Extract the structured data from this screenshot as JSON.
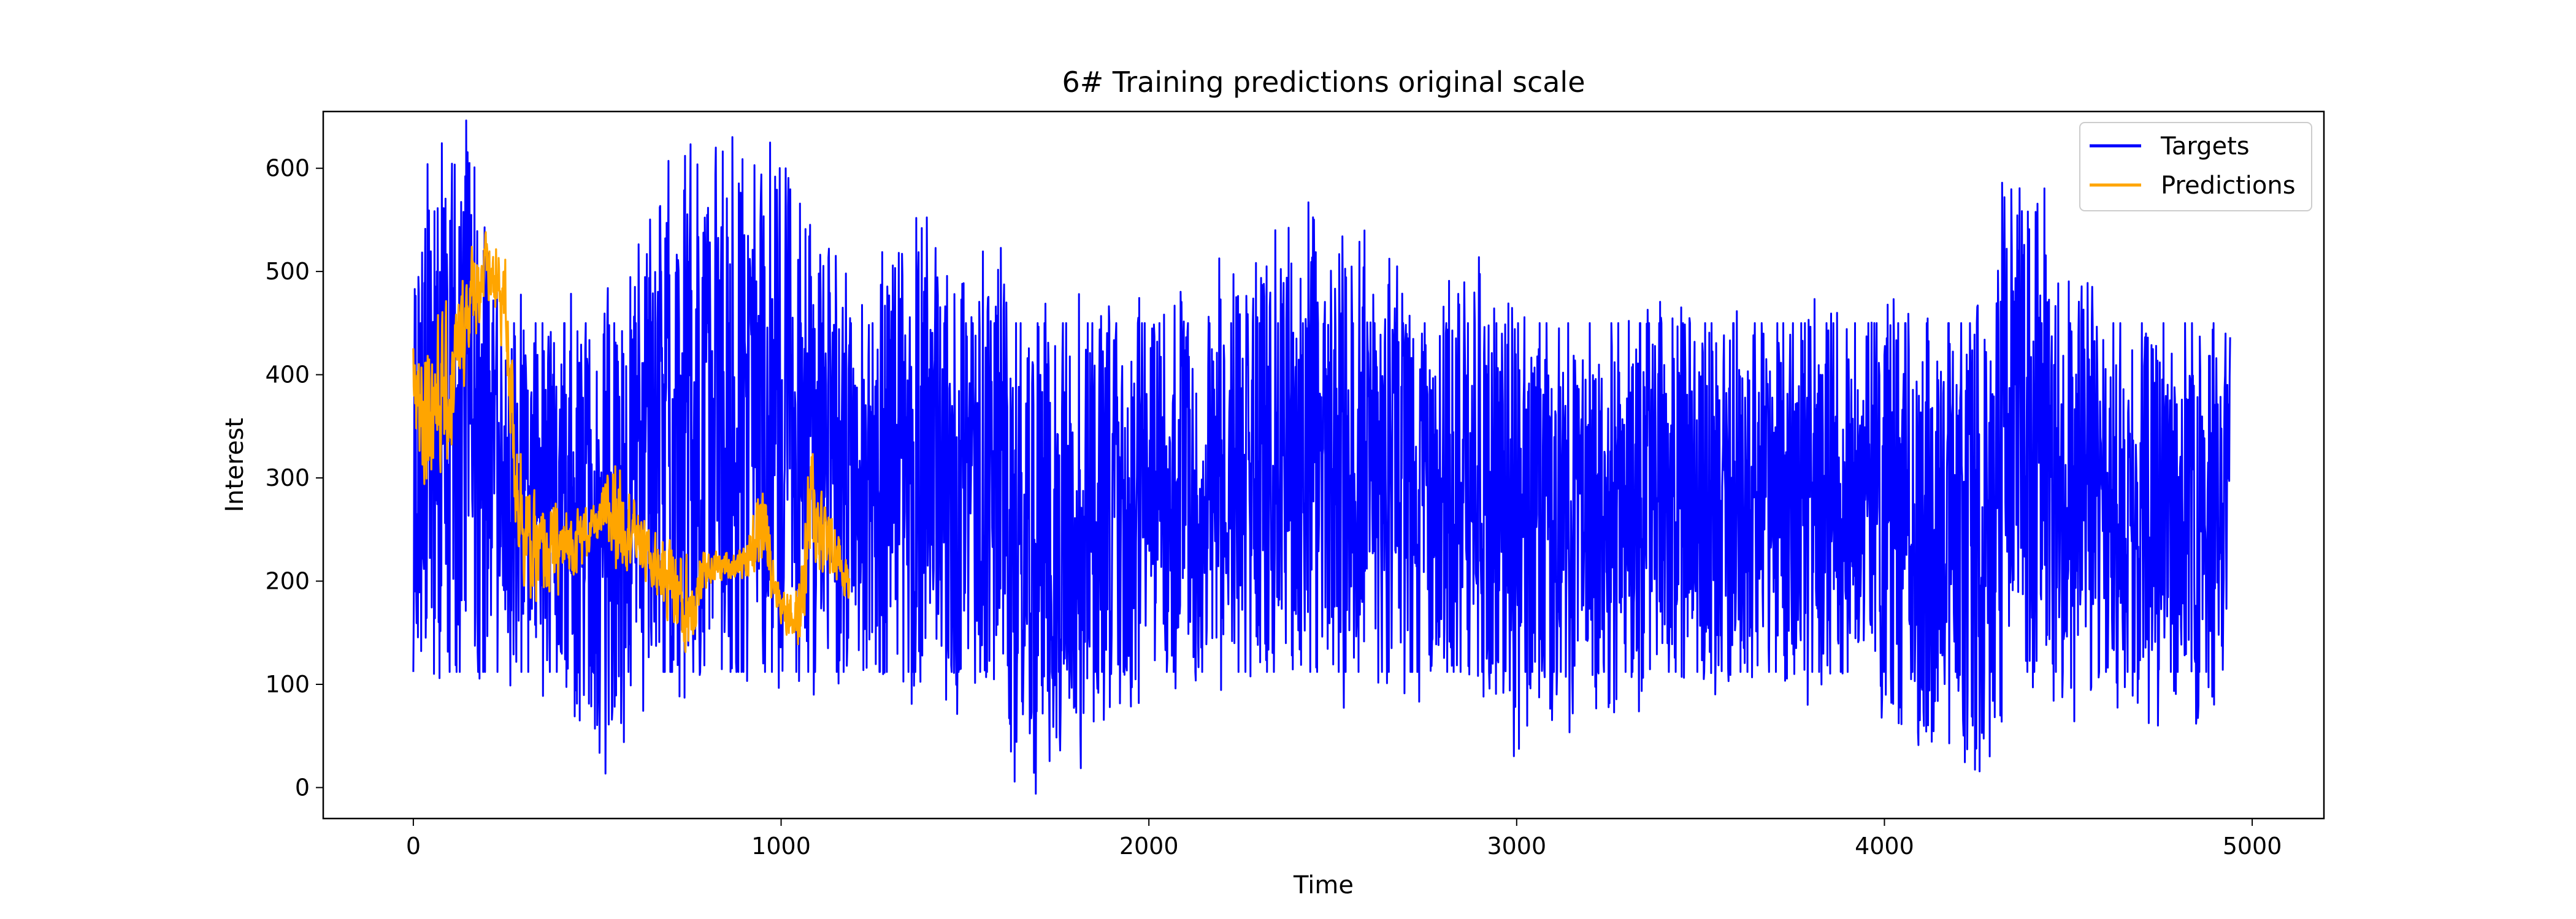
{
  "chart_data": {
    "type": "line",
    "title": "6# Training predictions original scale",
    "xlabel": "Time",
    "ylabel": "Interest",
    "xlim": [
      -245,
      5195
    ],
    "ylim": [
      -30,
      655
    ],
    "xticks": [
      0,
      1000,
      2000,
      3000,
      4000,
      5000
    ],
    "xtick_labels": [
      "0",
      "1000",
      "2000",
      "3000",
      "4000",
      "5000"
    ],
    "yticks": [
      0,
      100,
      200,
      300,
      400,
      500,
      600
    ],
    "ytick_labels": [
      "0",
      "100",
      "200",
      "300",
      "400",
      "500",
      "600"
    ],
    "grid": false,
    "legend_position": "top-right",
    "series": [
      {
        "name": "Targets",
        "color": "#0000ff",
        "x_range": [
          0,
          4940
        ],
        "periodic_low": 112,
        "periodic_high": 450,
        "envelope": [
          {
            "x": 0,
            "low": 112,
            "high": 520
          },
          {
            "x": 40,
            "low": 150,
            "high": 580
          },
          {
            "x": 100,
            "low": 112,
            "high": 625
          },
          {
            "x": 150,
            "low": 112,
            "high": 615
          },
          {
            "x": 250,
            "low": 112,
            "high": 450
          },
          {
            "x": 400,
            "low": 112,
            "high": 450
          },
          {
            "x": 525,
            "low": 0,
            "high": 450
          },
          {
            "x": 600,
            "low": 112,
            "high": 545
          },
          {
            "x": 680,
            "low": 112,
            "high": 590
          },
          {
            "x": 760,
            "low": 112,
            "high": 620
          },
          {
            "x": 880,
            "low": 112,
            "high": 605
          },
          {
            "x": 1000,
            "low": 112,
            "high": 600
          },
          {
            "x": 1060,
            "low": 112,
            "high": 560
          },
          {
            "x": 1200,
            "low": 112,
            "high": 450
          },
          {
            "x": 1430,
            "low": 112,
            "high": 570
          },
          {
            "x": 1460,
            "low": 65,
            "high": 460
          },
          {
            "x": 1600,
            "low": 112,
            "high": 520
          },
          {
            "x": 1650,
            "low": 0,
            "high": 450
          },
          {
            "x": 2000,
            "low": 112,
            "high": 450
          },
          {
            "x": 2325,
            "low": 112,
            "high": 515
          },
          {
            "x": 2400,
            "low": 112,
            "high": 550
          },
          {
            "x": 2800,
            "low": 112,
            "high": 450
          },
          {
            "x": 2880,
            "low": 112,
            "high": 505
          },
          {
            "x": 3000,
            "low": 25,
            "high": 460
          },
          {
            "x": 3050,
            "low": 60,
            "high": 450
          },
          {
            "x": 3500,
            "low": 112,
            "high": 450
          },
          {
            "x": 3960,
            "low": 95,
            "high": 450
          },
          {
            "x": 4280,
            "low": 25,
            "high": 450
          },
          {
            "x": 4330,
            "low": 112,
            "high": 620
          },
          {
            "x": 4600,
            "low": 90,
            "high": 450
          },
          {
            "x": 4880,
            "low": 65,
            "high": 450
          },
          {
            "x": 4940,
            "low": 150,
            "high": 450
          }
        ]
      },
      {
        "name": "Predictions",
        "color": "#ffa500",
        "x_range": [
          0,
          1185
        ],
        "envelope": [
          {
            "x": 0,
            "low": 285,
            "high": 480
          },
          {
            "x": 50,
            "low": 260,
            "high": 505
          },
          {
            "x": 100,
            "low": 280,
            "high": 480
          },
          {
            "x": 150,
            "low": 400,
            "high": 545
          },
          {
            "x": 200,
            "low": 450,
            "high": 550
          },
          {
            "x": 250,
            "low": 400,
            "high": 540
          },
          {
            "x": 280,
            "low": 200,
            "high": 400
          },
          {
            "x": 320,
            "low": 150,
            "high": 300
          },
          {
            "x": 400,
            "low": 170,
            "high": 290
          },
          {
            "x": 500,
            "low": 230,
            "high": 280
          },
          {
            "x": 550,
            "low": 180,
            "high": 360
          },
          {
            "x": 600,
            "low": 210,
            "high": 290
          },
          {
            "x": 650,
            "low": 170,
            "high": 260
          },
          {
            "x": 700,
            "low": 145,
            "high": 260
          },
          {
            "x": 740,
            "low": 90,
            "high": 250
          },
          {
            "x": 800,
            "low": 190,
            "high": 235
          },
          {
            "x": 900,
            "low": 195,
            "high": 240
          },
          {
            "x": 950,
            "low": 190,
            "high": 325
          },
          {
            "x": 1000,
            "low": 150,
            "high": 200
          },
          {
            "x": 1050,
            "low": 110,
            "high": 220
          },
          {
            "x": 1080,
            "low": 180,
            "high": 365
          },
          {
            "x": 1185,
            "low": 175,
            "high": 220
          }
        ]
      }
    ]
  }
}
